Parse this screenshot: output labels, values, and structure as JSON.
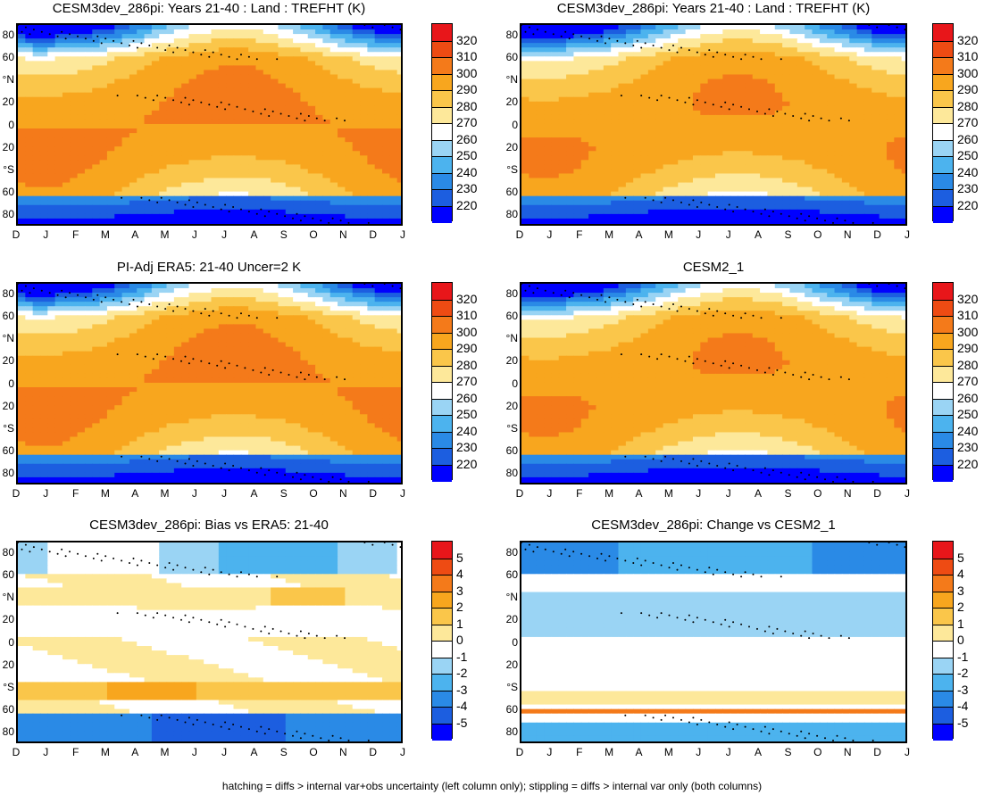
{
  "chart_data": [
    {
      "type": "heatmap",
      "kind": "abs",
      "title": "CESM3dev_286pi: Years 21-40 : Land : TREFHT (K)",
      "xlabel": "",
      "ylabel": "",
      "x_ticks": [
        "D",
        "J",
        "F",
        "M",
        "A",
        "M",
        "J",
        "J",
        "A",
        "S",
        "O",
        "N",
        "D",
        "J"
      ],
      "y_ticks": [
        "80",
        "60",
        "°N",
        "20",
        "0",
        "20",
        "°S",
        "60",
        "80"
      ],
      "colorbar": [
        "320",
        "310",
        "300",
        "290",
        "280",
        "270",
        "260",
        "250",
        "240",
        "230",
        "220"
      ],
      "ylim": [
        -90,
        90
      ],
      "annotation": "hatching over Antarctic and Arctic; stippling in tropics/high latitudes"
    },
    {
      "type": "heatmap",
      "kind": "abs",
      "title": "CESM3dev_286pi: Years 21-40 : Land : TREFHT (K)",
      "xlabel": "",
      "ylabel": "",
      "x_ticks": [
        "D",
        "J",
        "F",
        "M",
        "A",
        "M",
        "J",
        "J",
        "A",
        "S",
        "O",
        "N",
        "D",
        "J"
      ],
      "y_ticks": [
        "80",
        "60",
        "°N",
        "20",
        "0",
        "20",
        "°S",
        "60",
        "80"
      ],
      "colorbar": [
        "320",
        "310",
        "300",
        "290",
        "280",
        "270",
        "260",
        "250",
        "240",
        "230",
        "220"
      ],
      "ylim": [
        -90,
        90
      ],
      "annotation": "stippling at high latitudes and near 10-30N"
    },
    {
      "type": "heatmap",
      "kind": "abs",
      "title": "PI-Adj ERA5: 21-40 Uncer=2 K",
      "xlabel": "",
      "ylabel": "",
      "x_ticks": [
        "D",
        "J",
        "F",
        "M",
        "A",
        "M",
        "J",
        "J",
        "A",
        "S",
        "O",
        "N",
        "D",
        "J"
      ],
      "y_ticks": [
        "80",
        "60",
        "°N",
        "20",
        "0",
        "20",
        "°S",
        "60",
        "80"
      ],
      "colorbar": [
        "320",
        "310",
        "300",
        "290",
        "280",
        "270",
        "260",
        "250",
        "240",
        "230",
        "220"
      ],
      "ylim": [
        -90,
        90
      ],
      "annotation": "hatching over Antarctic; stippling near 20N and 40S"
    },
    {
      "type": "heatmap",
      "kind": "abs",
      "title": "CESM2_1",
      "xlabel": "",
      "ylabel": "",
      "x_ticks": [
        "D",
        "J",
        "F",
        "M",
        "A",
        "M",
        "J",
        "J",
        "A",
        "S",
        "O",
        "N",
        "D",
        "J"
      ],
      "y_ticks": [
        "80",
        "60",
        "°N",
        "20",
        "0",
        "20",
        "°S",
        "60",
        "80"
      ],
      "colorbar": [
        "320",
        "310",
        "300",
        "290",
        "280",
        "270",
        "260",
        "250",
        "240",
        "230",
        "220"
      ],
      "ylim": [
        -90,
        90
      ],
      "annotation": "stippling at high latitudes and along 10N"
    },
    {
      "type": "heatmap",
      "kind": "bias",
      "title": "CESM3dev_286pi: Bias vs ERA5: 21-40",
      "xlabel": "",
      "ylabel": "",
      "x_ticks": [
        "D",
        "J",
        "F",
        "M",
        "A",
        "M",
        "J",
        "J",
        "A",
        "S",
        "O",
        "N",
        "D",
        "J"
      ],
      "y_ticks": [
        "80",
        "60",
        "°N",
        "20",
        "0",
        "20",
        "°S",
        "60",
        "80"
      ],
      "colorbar": [
        "5",
        "4",
        "3",
        "2",
        "1",
        "0",
        "-1",
        "-2",
        "-3",
        "-4",
        "-5"
      ],
      "ylim": [
        -90,
        90
      ],
      "annotation": "cold bias over Antarctica, warm bias near 40S and 40N in autumn"
    },
    {
      "type": "heatmap",
      "kind": "change",
      "title": "CESM3dev_286pi: Change vs CESM2_1",
      "xlabel": "",
      "ylabel": "",
      "x_ticks": [
        "D",
        "J",
        "F",
        "M",
        "A",
        "M",
        "J",
        "J",
        "A",
        "S",
        "O",
        "N",
        "D",
        "J"
      ],
      "y_ticks": [
        "80",
        "60",
        "°N",
        "20",
        "0",
        "20",
        "°S",
        "60",
        "80"
      ],
      "colorbar": [
        "5",
        "4",
        "3",
        "2",
        "1",
        "0",
        "-1",
        "-2",
        "-3",
        "-4",
        "-5"
      ],
      "ylim": [
        -90,
        90
      ],
      "annotation": "widespread cooling, warm band near 60S"
    }
  ],
  "colors": {
    "abs": [
      "#e8161a",
      "#ee4b13",
      "#f47a1a",
      "#f8a61e",
      "#fac64a",
      "#fde89a",
      "#ffffff",
      "#9ad4f4",
      "#4cb3ee",
      "#2a8ae6",
      "#1c5ee0",
      "#0000ff"
    ],
    "div": [
      "#e8161a",
      "#ee4b13",
      "#f47a1a",
      "#f8a61e",
      "#fac64a",
      "#fde89a",
      "#ffffff",
      "#9ad4f4",
      "#4cb3ee",
      "#2a8ae6",
      "#1c5ee0",
      "#0000ff"
    ]
  },
  "footer": "hatching = diffs > internal var+obs uncertainty (left column only); stippling = diffs > internal var only (both columns)"
}
